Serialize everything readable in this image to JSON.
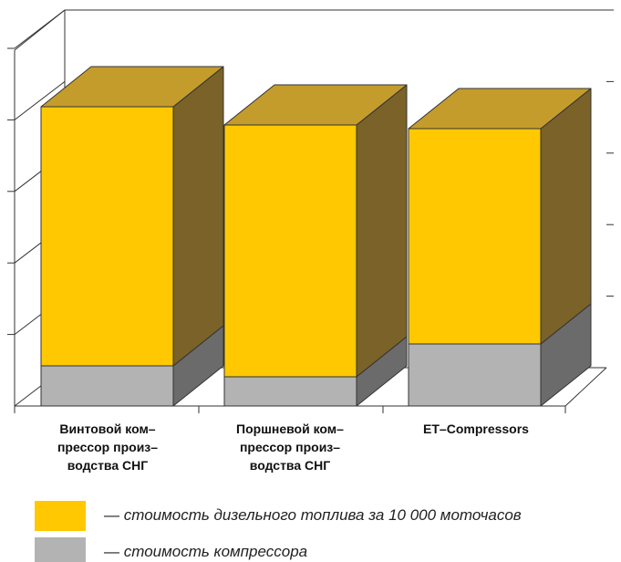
{
  "chart_data": {
    "type": "bar",
    "stacked": true,
    "style": "3d",
    "categories": [
      "Винтовой ком–\nпрессор произ–\nводства СНГ",
      "Поршневой ком–\nпрессор произ–\nводства СНГ",
      "ET–Compressors"
    ],
    "series": [
      {
        "name": "— стоимость компрессора",
        "color": "#b3b3b3",
        "side_color": "#6b6b6b",
        "top_color": "#cfcfcf",
        "values": [
          0.55,
          0.4,
          0.85
        ]
      },
      {
        "name": "— стоимость дизельного топлива за 10 000 моточасов",
        "color": "#ffc800",
        "side_color": "#7a6228",
        "top_color": "#c49c2c",
        "values": [
          3.55,
          3.45,
          2.95
        ]
      }
    ],
    "ylim": [
      0,
      5
    ],
    "grid": false,
    "legend_position": "bottom"
  },
  "legend": {
    "items": [
      {
        "text": "— стоимость дизельного топлива за 10 000 моточасов",
        "color": "#ffc800"
      },
      {
        "text": "— стоимость компрессора",
        "color": "#b3b3b3"
      }
    ]
  }
}
